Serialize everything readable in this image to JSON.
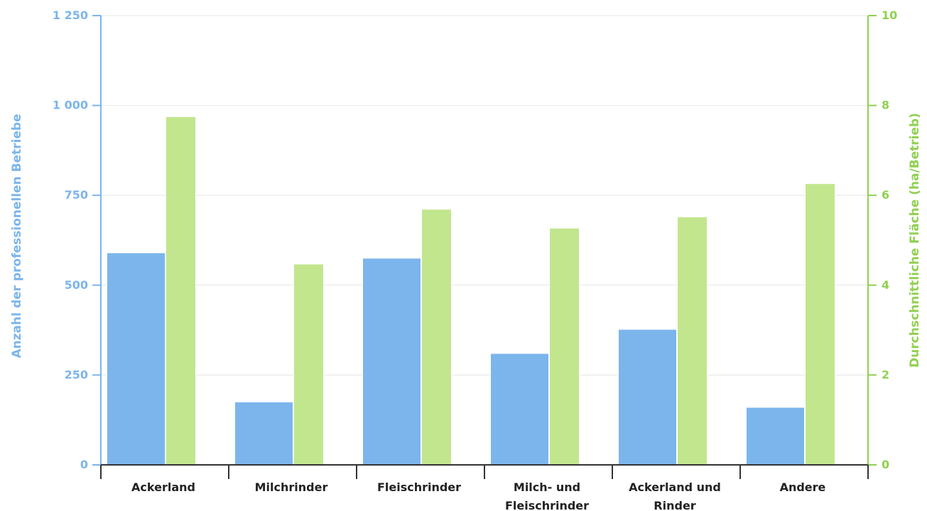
{
  "chart_data": {
    "type": "bar",
    "categories": [
      [
        "Ackerland"
      ],
      [
        "Milchrinder"
      ],
      [
        "Fleischrinder"
      ],
      [
        "Milch- und",
        "Fleischrinder"
      ],
      [
        "Ackerland und",
        "Rinder"
      ],
      [
        "Andere"
      ]
    ],
    "series": [
      {
        "axis": "left",
        "color": "#7cb5ec",
        "values": [
          590,
          175,
          575,
          310,
          377,
          160
        ]
      },
      {
        "axis": "right",
        "color": "#c2e68e",
        "values": [
          7.75,
          4.47,
          5.69,
          5.27,
          5.52,
          6.26
        ]
      }
    ],
    "y_left": {
      "label": "Anzahl der professionellen Betriebe",
      "min": 0,
      "max": 1250,
      "ticks": [
        0,
        250,
        500,
        750,
        1000,
        1250
      ],
      "tick_labels": [
        "0",
        "250",
        "500",
        "750",
        "1 000",
        "1 250"
      ],
      "color": "#7cb5ec"
    },
    "y_right": {
      "label": "Durchschnittliche Fläche (ha/Betrieb)",
      "min": 0,
      "max": 10,
      "ticks": [
        0,
        2,
        4,
        6,
        8,
        10
      ],
      "tick_labels": [
        "0",
        "2",
        "4",
        "6",
        "8",
        "10"
      ],
      "color": "#90d050"
    },
    "grid": true,
    "legend": "none"
  }
}
